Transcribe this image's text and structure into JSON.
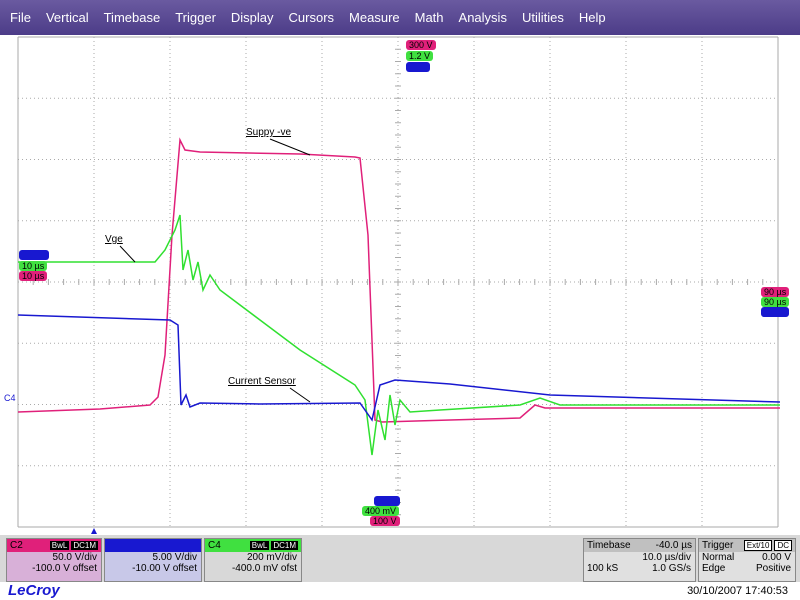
{
  "menu": [
    "File",
    "Vertical",
    "Timebase",
    "Trigger",
    "Display",
    "Cursors",
    "Measure",
    "Math",
    "Analysis",
    "Utilities",
    "Help"
  ],
  "trace_labels": {
    "supply": "Suppy -ve",
    "vge": "Vge",
    "current": "Current Sensor"
  },
  "axis_marker": "C4",
  "top_markers": [
    "300 V",
    "1.2 V"
  ],
  "left_markers": [
    "10 µs",
    "10 µs"
  ],
  "right_markers": [
    "90 µs",
    "90 µs"
  ],
  "bottom_markers": [
    "400 mV",
    "100 V"
  ],
  "channels": [
    {
      "name": "C2",
      "bandwidth": "BwL",
      "coupling": "DC1M",
      "scale": "50.0 V/div",
      "offset": "-100.0 V offset"
    },
    {
      "scale": "5.00 V/div",
      "offset": "-10.00 V offset"
    },
    {
      "name": "C4",
      "bandwidth": "BwL",
      "coupling": "DC1M",
      "scale": "200 mV/div",
      "offset": "-400.0 mV ofst"
    }
  ],
  "timebase": {
    "label": "Timebase",
    "delay": "-40.0 µs",
    "scale": "10.0 µs/div",
    "samples": "100 kS",
    "rate": "1.0 GS/s"
  },
  "trigger": {
    "label": "Trigger",
    "source": "Ext/10",
    "coupling": "DC",
    "mode": "Normal",
    "level": "0.00 V",
    "type": "Edge",
    "slope": "Positive"
  },
  "footer": {
    "brand": "LeCroy",
    "timestamp": "30/10/2007 17:40:53"
  }
}
